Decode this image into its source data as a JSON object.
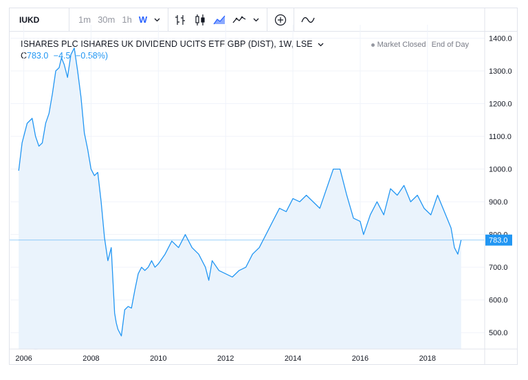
{
  "toolbar": {
    "symbol": "IUKD",
    "intervals": [
      "1m",
      "30m",
      "1h",
      "W"
    ],
    "active_interval": "W"
  },
  "legend": {
    "title": "ISHARES PLC ISHARES UK DIVIDEND UCITS ETF GBP (DIST), 1W, LSE",
    "close_label": "C",
    "close_value": "783.0",
    "change": "−4.5",
    "change_pct": "(−0.58%)"
  },
  "status": {
    "market": "Market Closed",
    "data_mode": "End of Day"
  },
  "colors": {
    "line": "#2196f3",
    "fill": "#eaf3fc",
    "grid": "#f0f3fa",
    "price_label_bg": "#2196f3"
  },
  "chart_data": {
    "type": "area",
    "ylim": [
      450,
      1420
    ],
    "y_ticks": [
      500,
      600,
      700,
      800,
      900,
      1000,
      1100,
      1200,
      1300,
      1400
    ],
    "y_tick_labels": [
      "500.0",
      "600.0",
      "700.0",
      "800.0",
      "900.0",
      "1000.0",
      "1100.0",
      "1200.0",
      "1300.0",
      "1400.0"
    ],
    "xlim": [
      2005.6,
      2019.7
    ],
    "x_ticks": [
      2006,
      2008,
      2010,
      2012,
      2014,
      2016,
      2018
    ],
    "x_tick_labels": [
      "2006",
      "2008",
      "2010",
      "2012",
      "2014",
      "2016",
      "2018"
    ],
    "last_price": 783.0,
    "last_price_label": "783.0",
    "series": [
      {
        "x": [
          2005.85,
          2005.95,
          2006.1,
          2006.25,
          2006.35,
          2006.45,
          2006.55,
          2006.65,
          2006.75,
          2006.85,
          2006.95,
          2007.05,
          2007.12,
          2007.2,
          2007.3,
          2007.4,
          2007.5,
          2007.6,
          2007.7,
          2007.8,
          2007.9,
          2008.0,
          2008.1,
          2008.2,
          2008.3,
          2008.4,
          2008.5,
          2008.6,
          2008.7,
          2008.75,
          2008.8,
          2008.9,
          2009.0,
          2009.1,
          2009.2,
          2009.3,
          2009.4,
          2009.5,
          2009.6,
          2009.7,
          2009.8,
          2009.9,
          2010.0,
          2010.2,
          2010.4,
          2010.6,
          2010.8,
          2011.0,
          2011.2,
          2011.4,
          2011.5,
          2011.6,
          2011.8,
          2012.0,
          2012.2,
          2012.4,
          2012.6,
          2012.8,
          2013.0,
          2013.2,
          2013.4,
          2013.6,
          2013.8,
          2014.0,
          2014.2,
          2014.4,
          2014.6,
          2014.8,
          2015.0,
          2015.2,
          2015.4,
          2015.6,
          2015.8,
          2016.0,
          2016.1,
          2016.3,
          2016.5,
          2016.7,
          2016.9,
          2017.1,
          2017.3,
          2017.5,
          2017.7,
          2017.9,
          2018.1,
          2018.3,
          2018.5,
          2018.7,
          2018.8,
          2018.9,
          2019.0
        ],
        "y": [
          995,
          1080,
          1140,
          1155,
          1100,
          1070,
          1080,
          1140,
          1170,
          1230,
          1300,
          1310,
          1340,
          1320,
          1280,
          1350,
          1370,
          1300,
          1220,
          1110,
          1060,
          1000,
          980,
          990,
          900,
          790,
          720,
          760,
          560,
          530,
          510,
          490,
          570,
          580,
          575,
          630,
          680,
          700,
          690,
          700,
          720,
          700,
          710,
          740,
          780,
          760,
          800,
          760,
          740,
          700,
          660,
          720,
          690,
          680,
          670,
          690,
          700,
          740,
          760,
          800,
          840,
          880,
          870,
          910,
          900,
          920,
          900,
          880,
          940,
          1000,
          1000,
          920,
          850,
          840,
          800,
          860,
          900,
          860,
          940,
          920,
          950,
          900,
          920,
          880,
          860,
          920,
          870,
          820,
          760,
          740,
          783
        ]
      }
    ]
  }
}
